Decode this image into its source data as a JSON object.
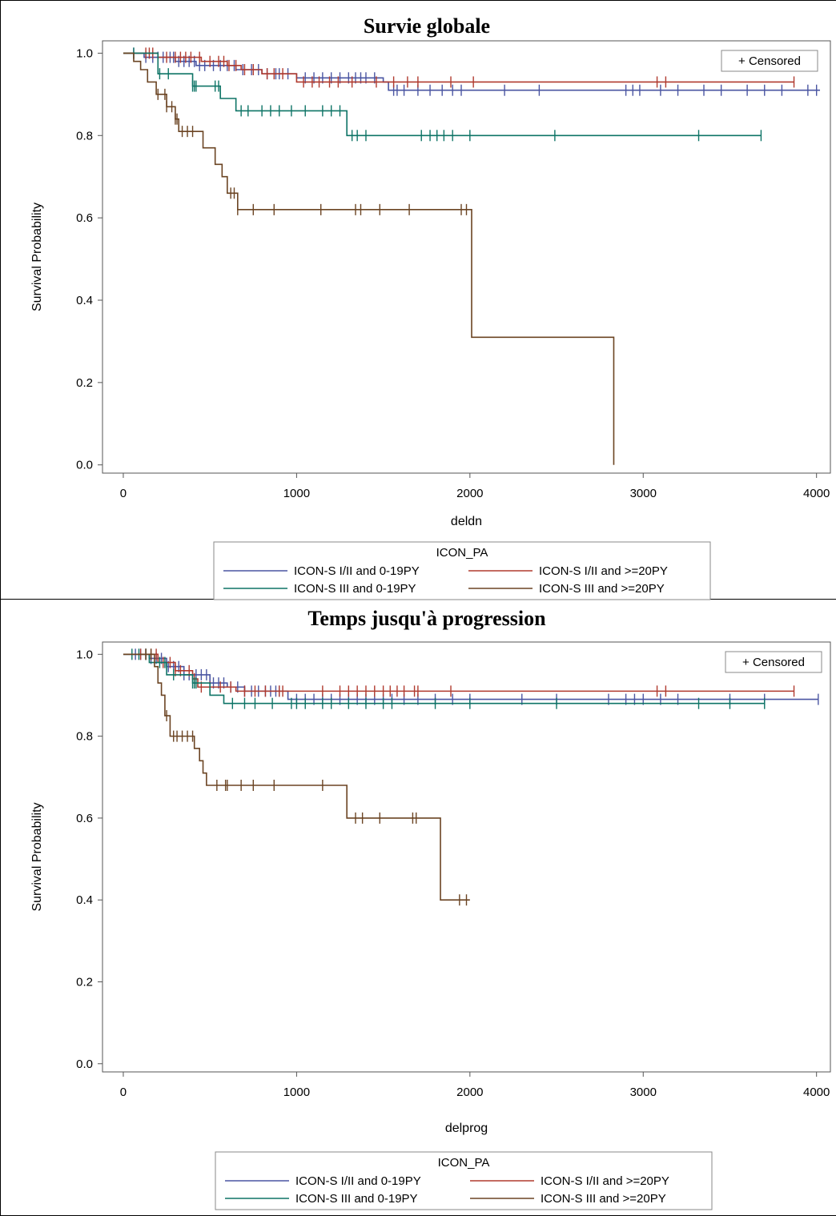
{
  "chart_data": [
    {
      "type": "line",
      "title": "Survie globale",
      "xlabel": "deldn",
      "ylabel": "Survival Probability",
      "xlim": [
        -120,
        4080
      ],
      "ylim": [
        -0.02,
        1.03
      ],
      "xticks": [
        "0",
        "1000",
        "2000",
        "3000",
        "4000"
      ],
      "yticks": [
        "0.0",
        "0.2",
        "0.4",
        "0.6",
        "0.8",
        "1.0"
      ],
      "inset_legend": "+ Censored",
      "legend_title": "ICON_PA",
      "legend_position": "bottom",
      "grid": false,
      "series": [
        {
          "name": "ICON-S I/II and 0-19PY",
          "color": "#4a55a2",
          "steps": [
            [
              0,
              1.0
            ],
            [
              120,
              0.99
            ],
            [
              300,
              0.98
            ],
            [
              420,
              0.97
            ],
            [
              650,
              0.96
            ],
            [
              800,
              0.95
            ],
            [
              1000,
              0.94
            ],
            [
              1500,
              0.93
            ],
            [
              1530,
              0.91
            ],
            [
              4020,
              0.91
            ]
          ],
          "censor": [
            60,
            130,
            170,
            200,
            230,
            270,
            290,
            320,
            350,
            380,
            410,
            440,
            470,
            520,
            560,
            600,
            640,
            690,
            740,
            780,
            830,
            880,
            900,
            950,
            1050,
            1100,
            1150,
            1200,
            1250,
            1300,
            1340,
            1370,
            1400,
            1450,
            1560,
            1580,
            1620,
            1700,
            1770,
            1840,
            1900,
            1950,
            2200,
            2400,
            2900,
            2940,
            2980,
            3100,
            3200,
            3350,
            3450,
            3600,
            3700,
            3800,
            3950,
            4000
          ]
        },
        {
          "name": "ICON-S I/II and >=20PY",
          "color": "#b03a2e",
          "steps": [
            [
              0,
              1.0
            ],
            [
              200,
              0.99
            ],
            [
              450,
              0.98
            ],
            [
              600,
              0.97
            ],
            [
              680,
              0.96
            ],
            [
              800,
              0.95
            ],
            [
              1000,
              0.93
            ],
            [
              3870,
              0.93
            ]
          ],
          "censor": [
            130,
            150,
            170,
            250,
            300,
            330,
            360,
            390,
            440,
            500,
            550,
            580,
            610,
            650,
            700,
            750,
            830,
            870,
            920,
            1040,
            1090,
            1130,
            1190,
            1240,
            1320,
            1460,
            1560,
            1640,
            1700,
            1890,
            2020,
            3080,
            3130,
            3870
          ]
        },
        {
          "name": "ICON-S III and 0-19PY",
          "color": "#0e7466",
          "steps": [
            [
              0,
              1.0
            ],
            [
              200,
              0.95
            ],
            [
              400,
              0.92
            ],
            [
              560,
              0.89
            ],
            [
              650,
              0.86
            ],
            [
              1290,
              0.8
            ],
            [
              3680,
              0.8
            ]
          ],
          "censor": [
            60,
            210,
            260,
            400,
            410,
            420,
            530,
            550,
            680,
            720,
            800,
            850,
            900,
            970,
            1050,
            1150,
            1200,
            1250,
            1320,
            1350,
            1400,
            1720,
            1770,
            1810,
            1850,
            1900,
            2000,
            2490,
            3320,
            3680
          ]
        },
        {
          "name": "ICON-S III and >=20PY",
          "color": "#6b4423",
          "steps": [
            [
              0,
              1.0
            ],
            [
              60,
              0.98
            ],
            [
              100,
              0.96
            ],
            [
              140,
              0.93
            ],
            [
              190,
              0.9
            ],
            [
              250,
              0.87
            ],
            [
              300,
              0.84
            ],
            [
              320,
              0.81
            ],
            [
              460,
              0.77
            ],
            [
              530,
              0.73
            ],
            [
              570,
              0.7
            ],
            [
              600,
              0.66
            ],
            [
              660,
              0.62
            ],
            [
              2010,
              0.31
            ],
            [
              2830,
              0.0
            ]
          ],
          "censor": [
            200,
            240,
            250,
            280,
            300,
            310,
            340,
            370,
            400,
            620,
            640,
            660,
            750,
            870,
            1140,
            1340,
            1370,
            1480,
            1650,
            1950,
            1980
          ]
        }
      ]
    },
    {
      "type": "line",
      "title": "Temps jusqu'à progression",
      "xlabel": "delprog",
      "ylabel": "Survival Probability",
      "xlim": [
        -120,
        4080
      ],
      "ylim": [
        -0.02,
        1.03
      ],
      "xticks": [
        "0",
        "1000",
        "2000",
        "3000",
        "4000"
      ],
      "yticks": [
        "0.0",
        "0.2",
        "0.4",
        "0.6",
        "0.8",
        "1.0"
      ],
      "inset_legend": "+ Censored",
      "legend_title": "ICON_PA",
      "legend_position": "bottom",
      "grid": false,
      "series": [
        {
          "name": "ICON-S I/II and 0-19PY",
          "color": "#4a55a2",
          "steps": [
            [
              0,
              1.0
            ],
            [
              150,
              0.99
            ],
            [
              250,
              0.97
            ],
            [
              350,
              0.95
            ],
            [
              500,
              0.93
            ],
            [
              600,
              0.92
            ],
            [
              700,
              0.91
            ],
            [
              950,
              0.89
            ],
            [
              4010,
              0.89
            ]
          ],
          "censor": [
            70,
            100,
            130,
            160,
            190,
            220,
            260,
            290,
            320,
            350,
            380,
            420,
            450,
            480,
            520,
            550,
            580,
            620,
            660,
            700,
            740,
            780,
            820,
            850,
            880,
            900,
            1000,
            1050,
            1100,
            1150,
            1200,
            1250,
            1300,
            1350,
            1400,
            1450,
            1500,
            1550,
            1620,
            1700,
            1800,
            1900,
            2000,
            2300,
            2500,
            2800,
            2900,
            2950,
            3000,
            3100,
            3200,
            3500,
            3700,
            4010
          ]
        },
        {
          "name": "ICON-S I/II and >=20PY",
          "color": "#b03a2e",
          "steps": [
            [
              0,
              1.0
            ],
            [
              200,
              0.98
            ],
            [
              300,
              0.96
            ],
            [
              400,
              0.94
            ],
            [
              430,
              0.92
            ],
            [
              650,
              0.91
            ],
            [
              850,
              0.91
            ],
            [
              3870,
              0.91
            ]
          ],
          "censor": [
            100,
            130,
            160,
            190,
            230,
            270,
            300,
            330,
            380,
            410,
            450,
            500,
            560,
            620,
            700,
            760,
            820,
            900,
            920,
            1150,
            1250,
            1300,
            1350,
            1400,
            1450,
            1500,
            1540,
            1580,
            1620,
            1680,
            1700,
            1890,
            3080,
            3130,
            3870
          ]
        },
        {
          "name": "ICON-S III and 0-19PY",
          "color": "#0e7466",
          "steps": [
            [
              0,
              1.0
            ],
            [
              150,
              0.98
            ],
            [
              250,
              0.95
            ],
            [
              400,
              0.93
            ],
            [
              500,
              0.9
            ],
            [
              580,
              0.88
            ],
            [
              3700,
              0.88
            ]
          ],
          "censor": [
            50,
            90,
            130,
            210,
            240,
            290,
            400,
            410,
            420,
            630,
            700,
            760,
            860,
            970,
            1000,
            1050,
            1150,
            1200,
            1300,
            1400,
            1500,
            1550,
            1800,
            2000,
            2500,
            3320,
            3500,
            3700
          ]
        },
        {
          "name": "ICON-S III and >=20PY",
          "color": "#6b4423",
          "steps": [
            [
              0,
              1.0
            ],
            [
              180,
              0.97
            ],
            [
              200,
              0.93
            ],
            [
              220,
              0.9
            ],
            [
              240,
              0.85
            ],
            [
              270,
              0.8
            ],
            [
              410,
              0.77
            ],
            [
              440,
              0.74
            ],
            [
              460,
              0.71
            ],
            [
              480,
              0.68
            ],
            [
              1290,
              0.6
            ],
            [
              1830,
              0.4
            ],
            [
              2000,
              0.4
            ]
          ],
          "censor": [
            130,
            160,
            250,
            290,
            310,
            340,
            370,
            400,
            540,
            590,
            600,
            680,
            750,
            870,
            1150,
            1340,
            1380,
            1480,
            1670,
            1690,
            1940,
            1980
          ]
        }
      ]
    }
  ]
}
